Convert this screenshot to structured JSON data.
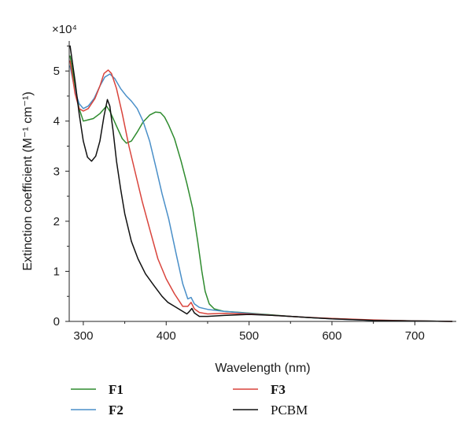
{
  "chart_data": {
    "type": "line",
    "xlabel": "Wavelength (nm)",
    "ylabel": "Extinction coefficient (M⁻¹ cm⁻¹)",
    "y_multiplier": "×10⁴",
    "xlim": [
      283,
      750
    ],
    "ylim": [
      0,
      5.6
    ],
    "x_ticks": [
      300,
      400,
      500,
      600,
      700
    ],
    "y_ticks": [
      0,
      1,
      2,
      3,
      4,
      5
    ],
    "legend_placement": "bottom",
    "grid": false,
    "series": [
      {
        "name": "F1",
        "color": "#2e8b2e",
        "bold": true,
        "points": [
          [
            284,
            5.3
          ],
          [
            290,
            4.7
          ],
          [
            295,
            4.25
          ],
          [
            300,
            4.0
          ],
          [
            305,
            4.02
          ],
          [
            312,
            4.05
          ],
          [
            320,
            4.15
          ],
          [
            328,
            4.3
          ],
          [
            332,
            4.2
          ],
          [
            340,
            3.9
          ],
          [
            347,
            3.65
          ],
          [
            352,
            3.56
          ],
          [
            358,
            3.6
          ],
          [
            365,
            3.78
          ],
          [
            372,
            3.98
          ],
          [
            380,
            4.12
          ],
          [
            387,
            4.18
          ],
          [
            393,
            4.17
          ],
          [
            398,
            4.08
          ],
          [
            403,
            3.92
          ],
          [
            410,
            3.65
          ],
          [
            418,
            3.2
          ],
          [
            425,
            2.75
          ],
          [
            432,
            2.25
          ],
          [
            438,
            1.6
          ],
          [
            443,
            1.0
          ],
          [
            447,
            0.6
          ],
          [
            452,
            0.35
          ],
          [
            458,
            0.25
          ],
          [
            470,
            0.2
          ],
          [
            490,
            0.18
          ],
          [
            520,
            0.14
          ],
          [
            550,
            0.1
          ],
          [
            580,
            0.07
          ],
          [
            610,
            0.05
          ],
          [
            650,
            0.02
          ],
          [
            700,
            0.01
          ],
          [
            745,
            0.0
          ]
        ]
      },
      {
        "name": "F2",
        "color": "#4a8fc8",
        "bold": true,
        "points": [
          [
            284,
            5.1
          ],
          [
            290,
            4.6
          ],
          [
            295,
            4.35
          ],
          [
            300,
            4.25
          ],
          [
            306,
            4.3
          ],
          [
            313,
            4.45
          ],
          [
            320,
            4.7
          ],
          [
            326,
            4.88
          ],
          [
            332,
            4.94
          ],
          [
            338,
            4.85
          ],
          [
            345,
            4.65
          ],
          [
            352,
            4.5
          ],
          [
            358,
            4.4
          ],
          [
            365,
            4.25
          ],
          [
            372,
            4.0
          ],
          [
            380,
            3.6
          ],
          [
            388,
            3.05
          ],
          [
            395,
            2.55
          ],
          [
            403,
            2.05
          ],
          [
            412,
            1.35
          ],
          [
            420,
            0.75
          ],
          [
            426,
            0.45
          ],
          [
            430,
            0.48
          ],
          [
            434,
            0.35
          ],
          [
            440,
            0.28
          ],
          [
            450,
            0.24
          ],
          [
            470,
            0.2
          ],
          [
            500,
            0.16
          ],
          [
            530,
            0.12
          ],
          [
            560,
            0.09
          ],
          [
            600,
            0.05
          ],
          [
            650,
            0.02
          ],
          [
            700,
            0.01
          ],
          [
            745,
            0.0
          ]
        ]
      },
      {
        "name": "F3",
        "color": "#d9443c",
        "bold": true,
        "points": [
          [
            284,
            5.2
          ],
          [
            290,
            4.55
          ],
          [
            295,
            4.25
          ],
          [
            300,
            4.2
          ],
          [
            306,
            4.25
          ],
          [
            314,
            4.45
          ],
          [
            320,
            4.7
          ],
          [
            325,
            4.95
          ],
          [
            330,
            5.02
          ],
          [
            334,
            4.95
          ],
          [
            340,
            4.65
          ],
          [
            347,
            4.15
          ],
          [
            355,
            3.5
          ],
          [
            363,
            2.95
          ],
          [
            371,
            2.4
          ],
          [
            380,
            1.85
          ],
          [
            390,
            1.25
          ],
          [
            400,
            0.85
          ],
          [
            410,
            0.55
          ],
          [
            420,
            0.3
          ],
          [
            426,
            0.3
          ],
          [
            430,
            0.38
          ],
          [
            434,
            0.25
          ],
          [
            440,
            0.18
          ],
          [
            450,
            0.15
          ],
          [
            470,
            0.16
          ],
          [
            500,
            0.15
          ],
          [
            530,
            0.12
          ],
          [
            560,
            0.09
          ],
          [
            600,
            0.06
          ],
          [
            650,
            0.03
          ],
          [
            700,
            0.01
          ],
          [
            745,
            0.0
          ]
        ]
      },
      {
        "name": "PCBM",
        "color": "#111111",
        "bold": false,
        "points": [
          [
            284,
            5.5
          ],
          [
            290,
            4.8
          ],
          [
            295,
            4.15
          ],
          [
            300,
            3.6
          ],
          [
            305,
            3.28
          ],
          [
            310,
            3.2
          ],
          [
            315,
            3.3
          ],
          [
            320,
            3.6
          ],
          [
            325,
            4.1
          ],
          [
            329,
            4.43
          ],
          [
            332,
            4.3
          ],
          [
            336,
            3.8
          ],
          [
            340,
            3.2
          ],
          [
            345,
            2.65
          ],
          [
            350,
            2.15
          ],
          [
            358,
            1.6
          ],
          [
            366,
            1.25
          ],
          [
            375,
            0.95
          ],
          [
            385,
            0.72
          ],
          [
            395,
            0.5
          ],
          [
            402,
            0.38
          ],
          [
            410,
            0.3
          ],
          [
            418,
            0.22
          ],
          [
            425,
            0.15
          ],
          [
            428,
            0.2
          ],
          [
            431,
            0.26
          ],
          [
            434,
            0.17
          ],
          [
            440,
            0.1
          ],
          [
            450,
            0.1
          ],
          [
            470,
            0.12
          ],
          [
            500,
            0.14
          ],
          [
            530,
            0.12
          ],
          [
            560,
            0.09
          ],
          [
            600,
            0.05
          ],
          [
            650,
            0.02
          ],
          [
            700,
            0.01
          ],
          [
            745,
            0.0
          ]
        ]
      }
    ]
  }
}
